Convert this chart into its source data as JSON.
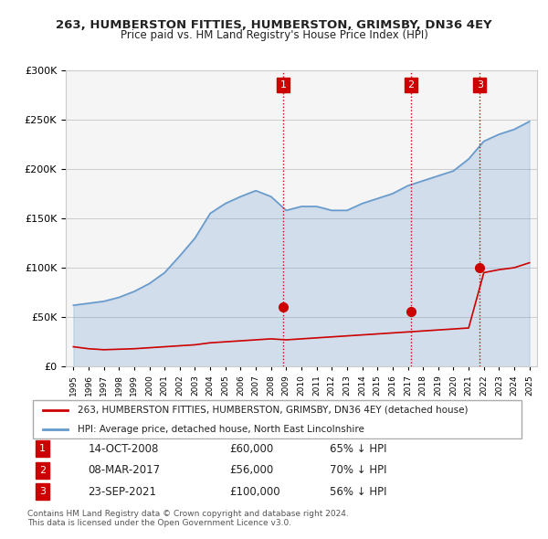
{
  "title": "263, HUMBERSTON FITTIES, HUMBERSTON, GRIMSBY, DN36 4EY",
  "subtitle": "Price paid vs. HM Land Registry's House Price Index (HPI)",
  "legend_label_red": "263, HUMBERSTON FITTIES, HUMBERSTON, GRIMSBY, DN36 4EY (detached house)",
  "legend_label_blue": "HPI: Average price, detached house, North East Lincolnshire",
  "footer1": "Contains HM Land Registry data © Crown copyright and database right 2024.",
  "footer2": "This data is licensed under the Open Government Licence v3.0.",
  "sales": [
    {
      "num": 1,
      "date": "14-OCT-2008",
      "price": 60000,
      "pct": "65%",
      "x": 2008.79
    },
    {
      "num": 2,
      "date": "08-MAR-2017",
      "price": 56000,
      "pct": "70%",
      "x": 2017.19
    },
    {
      "num": 3,
      "date": "23-SEP-2021",
      "price": 100000,
      "pct": "56%",
      "x": 2021.73
    }
  ],
  "hpi_years": [
    1995,
    1996,
    1997,
    1998,
    1999,
    2000,
    2001,
    2002,
    2003,
    2004,
    2005,
    2006,
    2007,
    2008,
    2009,
    2010,
    2011,
    2012,
    2013,
    2014,
    2015,
    2016,
    2017,
    2018,
    2019,
    2020,
    2021,
    2022,
    2023,
    2024,
    2025
  ],
  "hpi_values": [
    62000,
    64000,
    66000,
    70000,
    76000,
    84000,
    95000,
    112000,
    130000,
    155000,
    165000,
    172000,
    178000,
    172000,
    158000,
    162000,
    162000,
    158000,
    158000,
    165000,
    170000,
    175000,
    183000,
    188000,
    193000,
    198000,
    210000,
    228000,
    235000,
    240000,
    248000
  ],
  "red_years": [
    1995,
    1996,
    1997,
    1998,
    1999,
    2000,
    2001,
    2002,
    2003,
    2004,
    2005,
    2006,
    2007,
    2008,
    2009,
    2010,
    2011,
    2012,
    2013,
    2014,
    2015,
    2016,
    2017,
    2018,
    2019,
    2020,
    2021,
    2022,
    2023,
    2024,
    2025
  ],
  "red_values": [
    20000,
    18000,
    17000,
    17500,
    18000,
    19000,
    20000,
    21000,
    22000,
    24000,
    25000,
    26000,
    27000,
    28000,
    27000,
    28000,
    29000,
    30000,
    31000,
    32000,
    33000,
    34000,
    35000,
    36000,
    37000,
    38000,
    39000,
    95000,
    98000,
    100000,
    105000
  ],
  "ylim": [
    0,
    300000
  ],
  "yticks": [
    0,
    50000,
    100000,
    150000,
    200000,
    250000,
    300000
  ],
  "xlim": [
    1994.5,
    2025.5
  ],
  "color_red": "#cc0000",
  "color_blue": "#6699cc",
  "color_grid": "#cccccc",
  "color_vline": "#cc0000",
  "bg_color": "#ffffff",
  "plot_bg": "#f5f5f5"
}
